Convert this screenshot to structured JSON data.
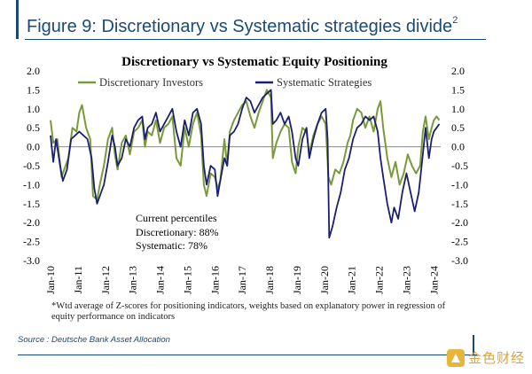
{
  "figure": {
    "title": "Figure 9: Discretionary vs Systematic strategies divide",
    "title_footnote_mark": "2",
    "accent_color": "#1a4a78"
  },
  "chart_data": {
    "type": "line",
    "title": "Discretionary  vs Systematic Equity Positioning",
    "xlabel": "",
    "ylabel": "",
    "ylim": [
      -3.0,
      2.0
    ],
    "y_ticks": [
      "2.0",
      "1.5",
      "1.0",
      "0.5",
      "0.0",
      "-0.5",
      "-1.0",
      "-1.5",
      "-2.0",
      "-2.5",
      "-3.0"
    ],
    "x_ticks": [
      "Jan-10",
      "Jan-11",
      "Jan-12",
      "Jan-13",
      "Jan-14",
      "Jan-15",
      "Jan-16",
      "Jan-17",
      "Jan-18",
      "Jan-19",
      "Jan-20",
      "Jan-21",
      "Jan-22",
      "Jan-23",
      "Jan-24"
    ],
    "legend_position": "top",
    "grid": false,
    "series": [
      {
        "name": "Discretionary Investors",
        "color": "#7a9a3a",
        "points": [
          [
            2010.0,
            0.7
          ],
          [
            2010.1,
            0.1
          ],
          [
            2010.25,
            0.2
          ],
          [
            2010.4,
            -0.8
          ],
          [
            2010.5,
            -0.6
          ],
          [
            2010.65,
            -0.3
          ],
          [
            2010.8,
            0.5
          ],
          [
            2010.95,
            0.4
          ],
          [
            2011.05,
            0.9
          ],
          [
            2011.15,
            1.1
          ],
          [
            2011.3,
            0.5
          ],
          [
            2011.45,
            0.2
          ],
          [
            2011.55,
            -1.3
          ],
          [
            2011.7,
            -1.4
          ],
          [
            2011.8,
            -1.0
          ],
          [
            2011.95,
            -0.5
          ],
          [
            2012.1,
            0.2
          ],
          [
            2012.25,
            0.5
          ],
          [
            2012.35,
            -0.2
          ],
          [
            2012.45,
            -0.6
          ],
          [
            2012.6,
            0.1
          ],
          [
            2012.75,
            0.3
          ],
          [
            2012.9,
            -0.2
          ],
          [
            2013.05,
            0.4
          ],
          [
            2013.2,
            0.5
          ],
          [
            2013.35,
            0.7
          ],
          [
            2013.45,
            0.0
          ],
          [
            2013.55,
            0.4
          ],
          [
            2013.7,
            0.3
          ],
          [
            2013.85,
            0.7
          ],
          [
            2014.0,
            0.1
          ],
          [
            2014.15,
            0.5
          ],
          [
            2014.3,
            0.6
          ],
          [
            2014.45,
            0.8
          ],
          [
            2014.6,
            -0.3
          ],
          [
            2014.75,
            -0.5
          ],
          [
            2014.9,
            0.5
          ],
          [
            2015.05,
            0.0
          ],
          [
            2015.2,
            0.6
          ],
          [
            2015.35,
            0.9
          ],
          [
            2015.5,
            0.3
          ],
          [
            2015.6,
            -1.0
          ],
          [
            2015.7,
            -1.3
          ],
          [
            2015.85,
            -0.7
          ],
          [
            2016.0,
            -0.8
          ],
          [
            2016.1,
            -1.1
          ],
          [
            2016.2,
            -0.9
          ],
          [
            2016.35,
            0.2
          ],
          [
            2016.45,
            -0.5
          ],
          [
            2016.55,
            0.4
          ],
          [
            2016.7,
            0.7
          ],
          [
            2016.85,
            0.9
          ],
          [
            2017.0,
            1.1
          ],
          [
            2017.15,
            1.2
          ],
          [
            2017.3,
            0.8
          ],
          [
            2017.45,
            0.5
          ],
          [
            2017.6,
            0.9
          ],
          [
            2017.75,
            1.2
          ],
          [
            2017.9,
            1.5
          ],
          [
            2018.05,
            1.3
          ],
          [
            2018.12,
            -0.3
          ],
          [
            2018.25,
            0.1
          ],
          [
            2018.4,
            0.4
          ],
          [
            2018.55,
            0.6
          ],
          [
            2018.7,
            0.5
          ],
          [
            2018.82,
            -0.4
          ],
          [
            2018.95,
            -0.7
          ],
          [
            2019.05,
            0.0
          ],
          [
            2019.2,
            0.5
          ],
          [
            2019.35,
            0.4
          ],
          [
            2019.45,
            -0.2
          ],
          [
            2019.6,
            0.3
          ],
          [
            2019.75,
            0.6
          ],
          [
            2019.9,
            0.8
          ],
          [
            2020.05,
            0.6
          ],
          [
            2020.15,
            -0.8
          ],
          [
            2020.25,
            -1.0
          ],
          [
            2020.4,
            -0.6
          ],
          [
            2020.55,
            -0.7
          ],
          [
            2020.7,
            -0.4
          ],
          [
            2020.85,
            0.1
          ],
          [
            2020.95,
            0.3
          ],
          [
            2021.05,
            0.7
          ],
          [
            2021.2,
            1.0
          ],
          [
            2021.35,
            0.9
          ],
          [
            2021.5,
            0.5
          ],
          [
            2021.65,
            0.8
          ],
          [
            2021.8,
            0.4
          ],
          [
            2021.95,
            1.0
          ],
          [
            2022.05,
            1.2
          ],
          [
            2022.15,
            0.5
          ],
          [
            2022.3,
            -0.3
          ],
          [
            2022.45,
            -0.8
          ],
          [
            2022.6,
            -0.4
          ],
          [
            2022.75,
            -1.0
          ],
          [
            2022.9,
            -0.7
          ],
          [
            2023.05,
            -0.2
          ],
          [
            2023.2,
            -0.5
          ],
          [
            2023.35,
            -0.7
          ],
          [
            2023.5,
            -0.5
          ],
          [
            2023.6,
            0.4
          ],
          [
            2023.7,
            0.8
          ],
          [
            2023.82,
            0.2
          ],
          [
            2023.92,
            0.5
          ],
          [
            2024.0,
            0.7
          ],
          [
            2024.1,
            0.8
          ],
          [
            2024.2,
            0.7
          ]
        ]
      },
      {
        "name": "Systematic Strategies",
        "color": "#1a1f6e",
        "points": [
          [
            2010.0,
            0.3
          ],
          [
            2010.1,
            -0.4
          ],
          [
            2010.2,
            0.2
          ],
          [
            2010.35,
            -0.5
          ],
          [
            2010.45,
            -0.9
          ],
          [
            2010.6,
            -0.6
          ],
          [
            2010.75,
            0.2
          ],
          [
            2010.9,
            0.3
          ],
          [
            2011.05,
            0.4
          ],
          [
            2011.2,
            0.3
          ],
          [
            2011.35,
            0.2
          ],
          [
            2011.5,
            -0.3
          ],
          [
            2011.6,
            -1.1
          ],
          [
            2011.7,
            -1.5
          ],
          [
            2011.85,
            -1.2
          ],
          [
            2011.95,
            -1.0
          ],
          [
            2012.1,
            -0.4
          ],
          [
            2012.25,
            0.3
          ],
          [
            2012.35,
            0.0
          ],
          [
            2012.45,
            -0.5
          ],
          [
            2012.6,
            -0.3
          ],
          [
            2012.75,
            0.2
          ],
          [
            2012.9,
            0.0
          ],
          [
            2013.05,
            0.5
          ],
          [
            2013.2,
            0.7
          ],
          [
            2013.35,
            0.8
          ],
          [
            2013.45,
            0.2
          ],
          [
            2013.55,
            0.5
          ],
          [
            2013.7,
            0.6
          ],
          [
            2013.85,
            0.9
          ],
          [
            2014.0,
            0.4
          ],
          [
            2014.15,
            0.6
          ],
          [
            2014.3,
            0.8
          ],
          [
            2014.45,
            1.0
          ],
          [
            2014.6,
            0.4
          ],
          [
            2014.75,
            0.0
          ],
          [
            2014.9,
            0.7
          ],
          [
            2015.05,
            0.3
          ],
          [
            2015.2,
            0.9
          ],
          [
            2015.35,
            1.0
          ],
          [
            2015.5,
            0.6
          ],
          [
            2015.6,
            -0.5
          ],
          [
            2015.7,
            -1.0
          ],
          [
            2015.85,
            -0.5
          ],
          [
            2016.0,
            -0.6
          ],
          [
            2016.1,
            -1.3
          ],
          [
            2016.2,
            -0.9
          ],
          [
            2016.35,
            -0.3
          ],
          [
            2016.45,
            -0.5
          ],
          [
            2016.55,
            0.3
          ],
          [
            2016.7,
            0.4
          ],
          [
            2016.85,
            0.6
          ],
          [
            2017.0,
            1.0
          ],
          [
            2017.15,
            1.3
          ],
          [
            2017.3,
            1.2
          ],
          [
            2017.45,
            0.9
          ],
          [
            2017.6,
            1.1
          ],
          [
            2017.75,
            1.3
          ],
          [
            2017.9,
            1.4
          ],
          [
            2018.05,
            1.5
          ],
          [
            2018.12,
            0.6
          ],
          [
            2018.25,
            0.7
          ],
          [
            2018.4,
            0.9
          ],
          [
            2018.55,
            0.6
          ],
          [
            2018.7,
            0.8
          ],
          [
            2018.82,
            0.4
          ],
          [
            2018.95,
            -0.3
          ],
          [
            2019.05,
            -0.5
          ],
          [
            2019.2,
            0.2
          ],
          [
            2019.35,
            0.5
          ],
          [
            2019.45,
            -0.3
          ],
          [
            2019.6,
            0.2
          ],
          [
            2019.75,
            0.6
          ],
          [
            2019.9,
            0.9
          ],
          [
            2020.05,
            1.0
          ],
          [
            2020.12,
            0.2
          ],
          [
            2020.18,
            -2.4
          ],
          [
            2020.3,
            -2.1
          ],
          [
            2020.45,
            -1.6
          ],
          [
            2020.6,
            -1.2
          ],
          [
            2020.75,
            -0.6
          ],
          [
            2020.9,
            -0.3
          ],
          [
            2021.05,
            0.2
          ],
          [
            2021.2,
            0.5
          ],
          [
            2021.35,
            0.6
          ],
          [
            2021.5,
            0.8
          ],
          [
            2021.65,
            0.7
          ],
          [
            2021.8,
            0.8
          ],
          [
            2021.95,
            0.4
          ],
          [
            2022.05,
            -0.3
          ],
          [
            2022.15,
            -0.8
          ],
          [
            2022.3,
            -1.5
          ],
          [
            2022.45,
            -2.0
          ],
          [
            2022.55,
            -1.6
          ],
          [
            2022.7,
            -1.9
          ],
          [
            2022.85,
            -1.2
          ],
          [
            2023.0,
            -0.7
          ],
          [
            2023.15,
            -1.2
          ],
          [
            2023.3,
            -1.7
          ],
          [
            2023.45,
            -1.2
          ],
          [
            2023.6,
            -0.2
          ],
          [
            2023.7,
            0.5
          ],
          [
            2023.82,
            -0.3
          ],
          [
            2023.92,
            0.2
          ],
          [
            2024.0,
            0.4
          ],
          [
            2024.1,
            0.5
          ],
          [
            2024.2,
            0.6
          ]
        ]
      }
    ],
    "annotation": {
      "heading": "Current percentiles",
      "lines": [
        "Discretionary: 88%",
        "Systematic: 78%"
      ]
    }
  },
  "footnote": "*Wtd average of Z-scores for positioning indicators, weights based on explanatory power in regression of equity performance on indicators",
  "source": "Source : Deutsche Bank Asset Allocation",
  "watermark": {
    "text": "金色财经",
    "color": "#d9a43a"
  }
}
